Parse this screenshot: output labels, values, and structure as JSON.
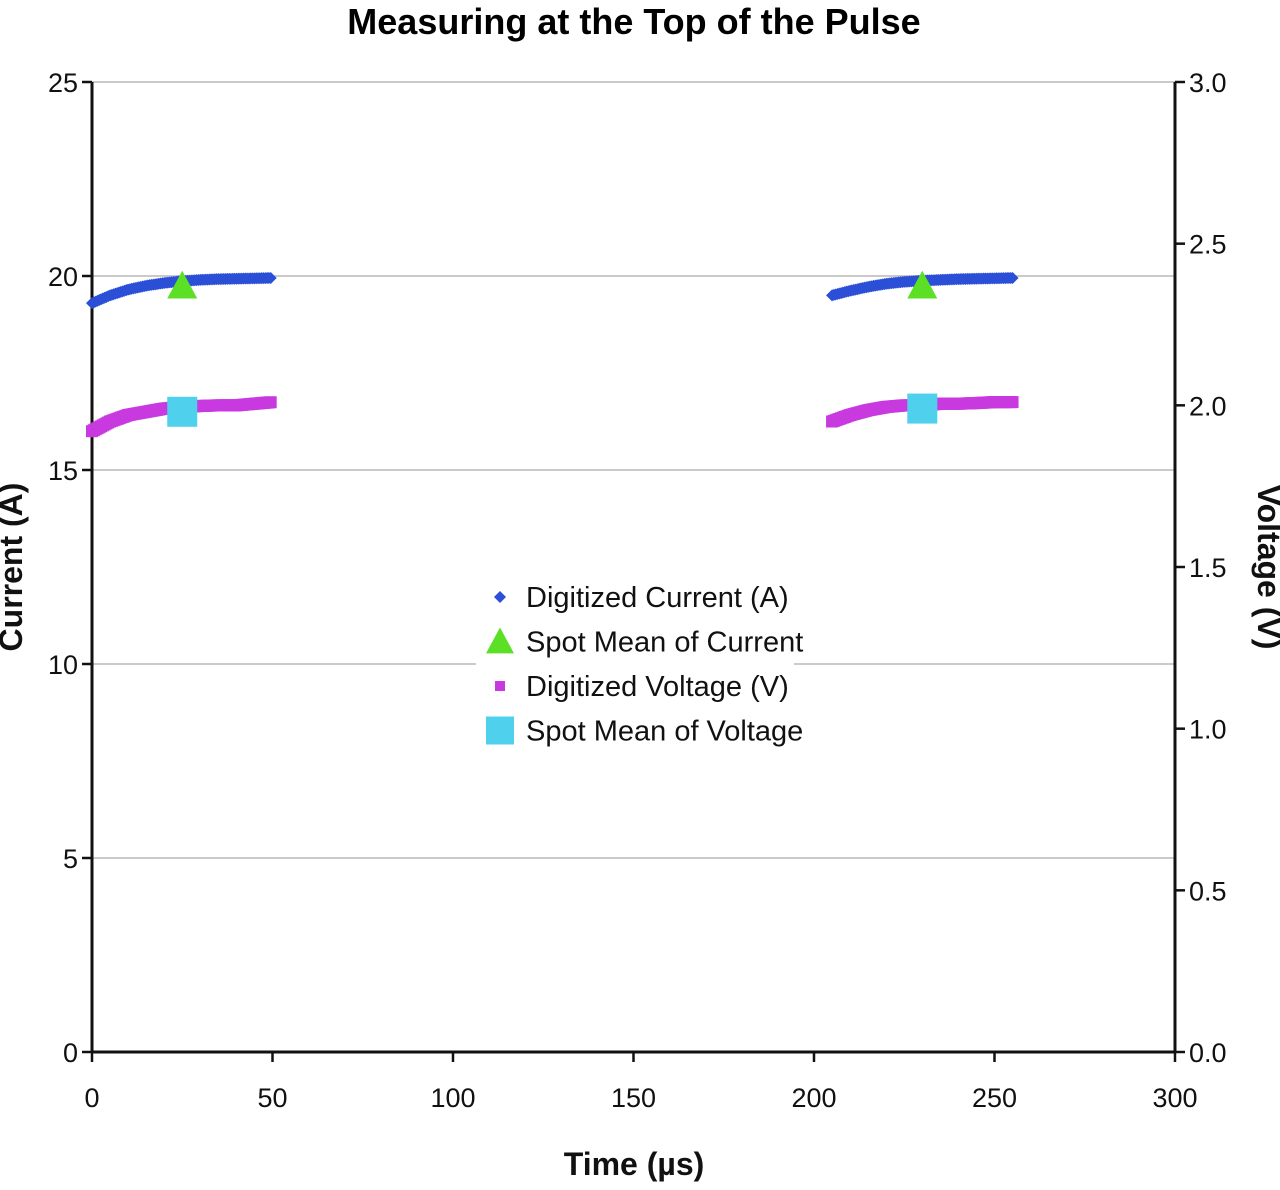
{
  "chart_data": {
    "type": "scatter",
    "title": "Measuring at the Top of the Pulse",
    "xlabel": "Time (µs)",
    "ylabel": "Current (A)",
    "y2label": "Voltage (V)",
    "xlim": [
      0,
      300
    ],
    "ylim": [
      0,
      25
    ],
    "y2lim": [
      0.0,
      3.0
    ],
    "x_ticks": [
      "0",
      "50",
      "100",
      "150",
      "200",
      "250",
      "300"
    ],
    "y_ticks": [
      "0",
      "5",
      "10",
      "15",
      "20",
      "25"
    ],
    "y2_ticks": [
      "0.0",
      "0.5",
      "1.0",
      "1.5",
      "2.0",
      "2.5",
      "3.0"
    ],
    "grid": "horizontal",
    "legend_position": "center",
    "series": [
      {
        "name": "Digitized Current (A)",
        "axis": "left",
        "marker": "diamond",
        "color": "#2b4fd6",
        "x": [
          0,
          5,
          10,
          15,
          20,
          25,
          30,
          35,
          40,
          45,
          50,
          205,
          210,
          215,
          220,
          225,
          230,
          235,
          240,
          245,
          250,
          255
        ],
        "y": [
          19.3,
          19.5,
          19.65,
          19.75,
          19.82,
          19.87,
          19.9,
          19.92,
          19.93,
          19.94,
          19.95,
          19.5,
          19.62,
          19.72,
          19.8,
          19.85,
          19.88,
          19.9,
          19.92,
          19.93,
          19.94,
          19.95
        ]
      },
      {
        "name": "Spot Mean of Current",
        "axis": "left",
        "marker": "triangle",
        "color": "#5be025",
        "x": [
          25,
          230
        ],
        "y": [
          19.75,
          19.75
        ]
      },
      {
        "name": "Digitized Voltage (V)",
        "axis": "right",
        "marker": "square",
        "color": "#c83ae0",
        "x": [
          0,
          5,
          10,
          15,
          20,
          25,
          30,
          35,
          40,
          45,
          50,
          205,
          210,
          215,
          220,
          225,
          230,
          235,
          240,
          245,
          250,
          255
        ],
        "y": [
          1.92,
          1.95,
          1.97,
          1.98,
          1.99,
          1.995,
          1.998,
          2.0,
          2.0,
          2.005,
          2.01,
          1.95,
          1.97,
          1.985,
          1.995,
          2.0,
          2.0,
          2.005,
          2.005,
          2.007,
          2.01,
          2.01
        ]
      },
      {
        "name": "Spot Mean of Voltage",
        "axis": "right",
        "marker": "square",
        "color": "#4fd0ec",
        "x": [
          25,
          230
        ],
        "y": [
          1.98,
          1.99
        ]
      }
    ]
  }
}
